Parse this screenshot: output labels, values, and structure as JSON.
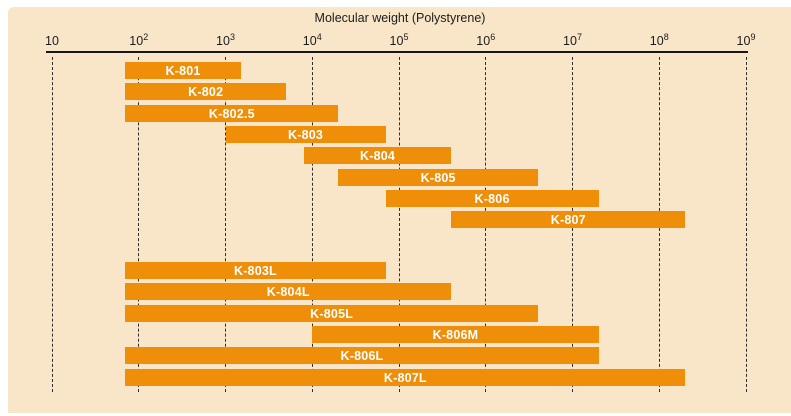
{
  "chart_data": {
    "type": "bar",
    "orientation": "horizontal-range",
    "title": "Molecular weight (Polystyrene)",
    "bar_color": "#EE8E09",
    "panel_color": "#F9E5C8",
    "grid": "dashed-vertical",
    "x_axis": {
      "scale": "log10",
      "min": 10,
      "max": 1000000000,
      "ticks": [
        {
          "value": 10,
          "base": "10",
          "exp": ""
        },
        {
          "value": 100,
          "base": "10",
          "exp": "2"
        },
        {
          "value": 1000,
          "base": "10",
          "exp": "3"
        },
        {
          "value": 10000,
          "base": "10",
          "exp": "4"
        },
        {
          "value": 100000,
          "base": "10",
          "exp": "5"
        },
        {
          "value": 1000000,
          "base": "10",
          "exp": "6"
        },
        {
          "value": 10000000,
          "base": "10",
          "exp": "7"
        },
        {
          "value": 100000000,
          "base": "10",
          "exp": "8"
        },
        {
          "value": 1000000000,
          "base": "10",
          "exp": "9"
        }
      ]
    },
    "rows": [
      {
        "label": "K-801",
        "mw_min": 70,
        "mw_max": 1500,
        "group": 1
      },
      {
        "label": "K-802",
        "mw_min": 70,
        "mw_max": 5000,
        "group": 1
      },
      {
        "label": "K-802.5",
        "mw_min": 70,
        "mw_max": 20000,
        "group": 1
      },
      {
        "label": "K-803",
        "mw_min": 1000,
        "mw_max": 70000,
        "group": 1
      },
      {
        "label": "K-804",
        "mw_min": 8000,
        "mw_max": 400000,
        "group": 1
      },
      {
        "label": "K-805",
        "mw_min": 20000,
        "mw_max": 4000000,
        "group": 1
      },
      {
        "label": "K-806",
        "mw_min": 70000,
        "mw_max": 20000000,
        "group": 1
      },
      {
        "label": "K-807",
        "mw_min": 400000,
        "mw_max": 200000000,
        "group": 1
      },
      {
        "label": "K-803L",
        "mw_min": 70,
        "mw_max": 70000,
        "group": 2
      },
      {
        "label": "K-804L",
        "mw_min": 70,
        "mw_max": 400000,
        "group": 2
      },
      {
        "label": "K-805L",
        "mw_min": 70,
        "mw_max": 4000000,
        "group": 2
      },
      {
        "label": "K-806M",
        "mw_min": 10000,
        "mw_max": 20000000,
        "group": 2
      },
      {
        "label": "K-806L",
        "mw_min": 70,
        "mw_max": 20000000,
        "group": 2
      },
      {
        "label": "K-807L",
        "mw_min": 70,
        "mw_max": 200000000,
        "group": 2
      }
    ]
  }
}
